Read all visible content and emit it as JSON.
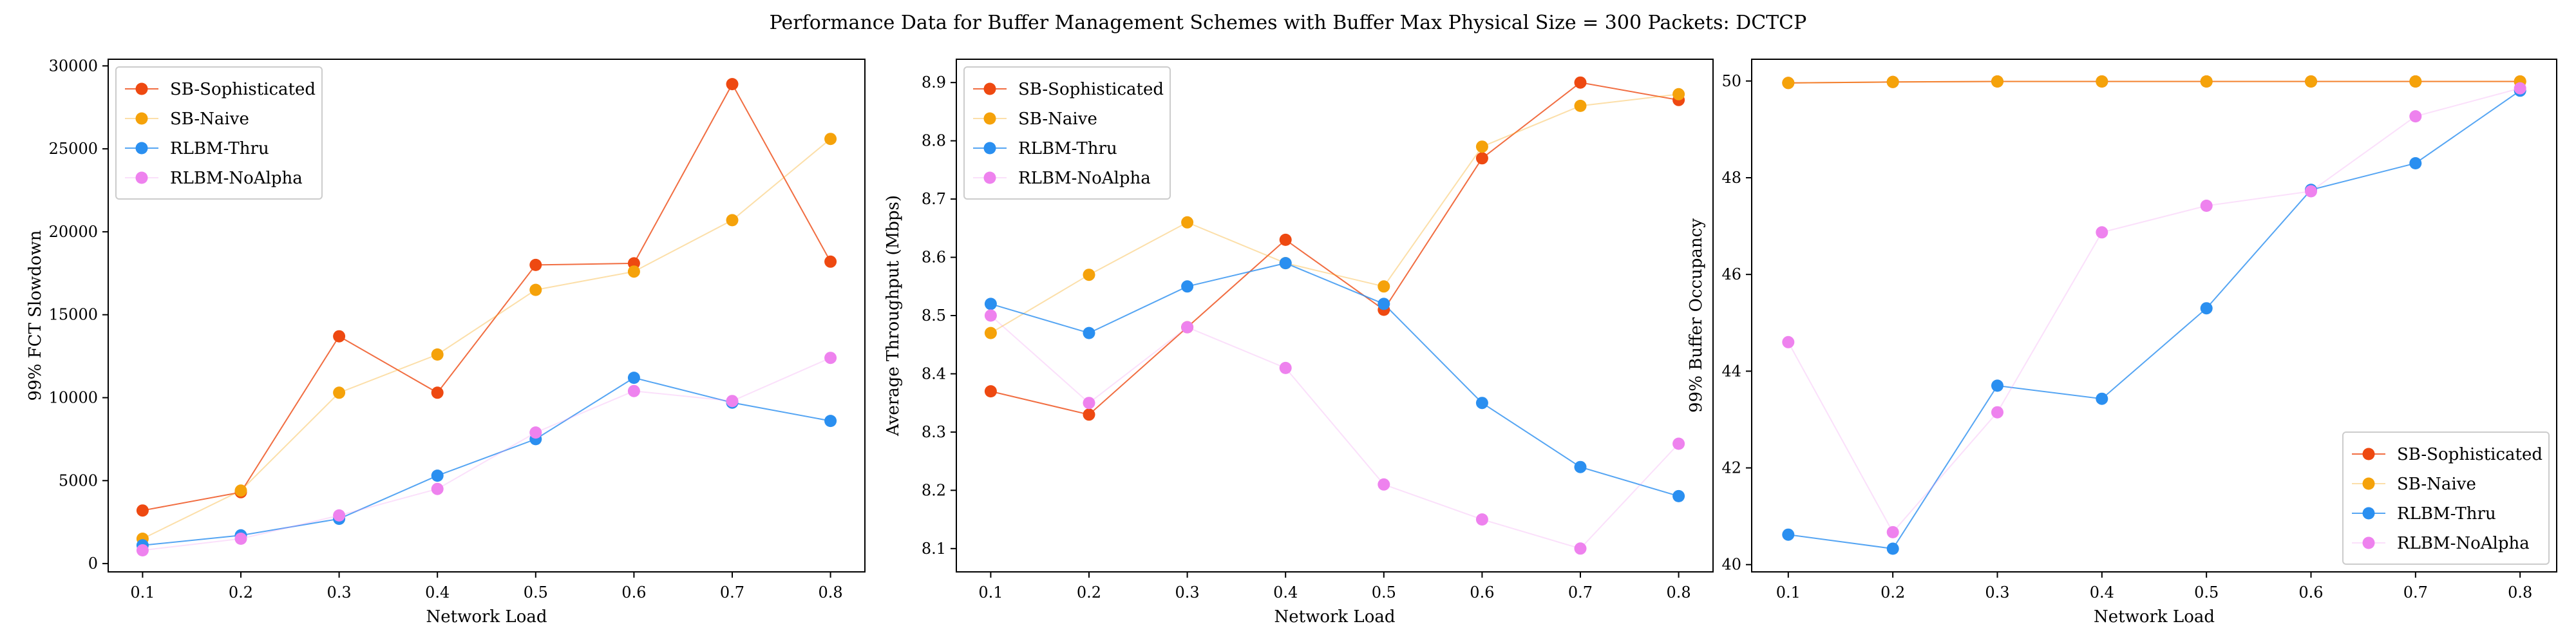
{
  "figure": {
    "title": "Performance Data for Buffer Management Schemes with Buffer Max Physical Size = 300 Packets: DCTCP"
  },
  "series_styles": [
    {
      "name": "SB-Sophisticated",
      "color": "#ee4911",
      "line_opacity": 0.8
    },
    {
      "name": "SB-Naive",
      "color": "#f5a20a",
      "line_opacity": 0.35
    },
    {
      "name": "RLBM-Thru",
      "color": "#2a8ff0",
      "line_opacity": 0.8
    },
    {
      "name": "RLBM-NoAlpha",
      "color": "#ee82ee",
      "line_opacity": 0.25
    }
  ],
  "chart_data": [
    {
      "type": "line",
      "title": "",
      "xlabel": "Network Load",
      "ylabel": "99% FCT Slowdown",
      "x": [
        0.1,
        0.2,
        0.3,
        0.4,
        0.5,
        0.6,
        0.7,
        0.8
      ],
      "xticks": [
        "0.1",
        "0.2",
        "0.3",
        "0.4",
        "0.5",
        "0.6",
        "0.7",
        "0.8"
      ],
      "xlim": [
        0.065,
        0.835
      ],
      "yticks": [
        0,
        5000,
        10000,
        15000,
        20000,
        25000,
        30000
      ],
      "ytick_labels": [
        "0",
        "5000",
        "10000",
        "15000",
        "20000",
        "25000",
        "30000"
      ],
      "ylim": [
        -500,
        30400
      ],
      "legend": "top-left",
      "grid": false,
      "series": [
        {
          "name": "SB-Sophisticated",
          "values": [
            3200,
            4300,
            13700,
            10300,
            18000,
            18100,
            28900,
            18200
          ]
        },
        {
          "name": "SB-Naive",
          "values": [
            1500,
            4400,
            10300,
            12600,
            16500,
            17600,
            20700,
            25600
          ]
        },
        {
          "name": "RLBM-Thru",
          "values": [
            1100,
            1700,
            2700,
            5300,
            7500,
            11200,
            9700,
            8600
          ]
        },
        {
          "name": "RLBM-NoAlpha",
          "values": [
            800,
            1500,
            2900,
            4500,
            7900,
            10400,
            9800,
            12400
          ]
        }
      ]
    },
    {
      "type": "line",
      "title": "",
      "xlabel": "Network Load",
      "ylabel": "Average Throughput (Mbps)",
      "x": [
        0.1,
        0.2,
        0.3,
        0.4,
        0.5,
        0.6,
        0.7,
        0.8
      ],
      "xticks": [
        "0.1",
        "0.2",
        "0.3",
        "0.4",
        "0.5",
        "0.6",
        "0.7",
        "0.8"
      ],
      "xlim": [
        0.065,
        0.835
      ],
      "yticks": [
        8.1,
        8.2,
        8.3,
        8.4,
        8.5,
        8.6,
        8.7,
        8.8,
        8.9
      ],
      "ytick_labels": [
        "8.1",
        "8.2",
        "8.3",
        "8.4",
        "8.5",
        "8.6",
        "8.7",
        "8.8",
        "8.9"
      ],
      "ylim": [
        8.06,
        8.94
      ],
      "legend": "top-left",
      "grid": false,
      "series": [
        {
          "name": "SB-Sophisticated",
          "values": [
            8.37,
            8.33,
            8.48,
            8.63,
            8.51,
            8.77,
            8.9,
            8.87
          ]
        },
        {
          "name": "SB-Naive",
          "values": [
            8.47,
            8.57,
            8.66,
            8.59,
            8.55,
            8.79,
            8.86,
            8.88
          ]
        },
        {
          "name": "RLBM-Thru",
          "values": [
            8.52,
            8.47,
            8.55,
            8.59,
            8.52,
            8.35,
            8.24,
            8.19
          ]
        },
        {
          "name": "RLBM-NoAlpha",
          "values": [
            8.5,
            8.35,
            8.48,
            8.41,
            8.21,
            8.15,
            8.1,
            8.28
          ]
        }
      ]
    },
    {
      "type": "line",
      "title": "",
      "xlabel": "Network Load",
      "ylabel": "99% Buffer Occupancy",
      "x": [
        0.1,
        0.2,
        0.3,
        0.4,
        0.5,
        0.6,
        0.7,
        0.8
      ],
      "xticks": [
        "0.1",
        "0.2",
        "0.3",
        "0.4",
        "0.5",
        "0.6",
        "0.7",
        "0.8"
      ],
      "xlim": [
        0.065,
        0.835
      ],
      "yticks": [
        40,
        42,
        44,
        46,
        48,
        50
      ],
      "ytick_labels": [
        "40",
        "42",
        "44",
        "46",
        "48",
        "50"
      ],
      "ylim": [
        39.85,
        50.45
      ],
      "legend": "bottom-right",
      "grid": false,
      "series": [
        {
          "name": "SB-Sophisticated",
          "values": [
            49.96,
            49.98,
            49.99,
            49.99,
            49.99,
            49.99,
            49.99,
            49.99
          ]
        },
        {
          "name": "SB-Naive",
          "values": [
            49.96,
            49.98,
            49.99,
            49.99,
            49.99,
            49.99,
            49.99,
            49.99
          ]
        },
        {
          "name": "RLBM-Thru",
          "values": [
            40.62,
            40.33,
            43.7,
            43.43,
            45.3,
            47.75,
            48.3,
            49.8
          ]
        },
        {
          "name": "RLBM-NoAlpha",
          "values": [
            44.6,
            40.67,
            43.15,
            46.87,
            47.42,
            47.72,
            49.27,
            49.85
          ]
        }
      ]
    }
  ]
}
